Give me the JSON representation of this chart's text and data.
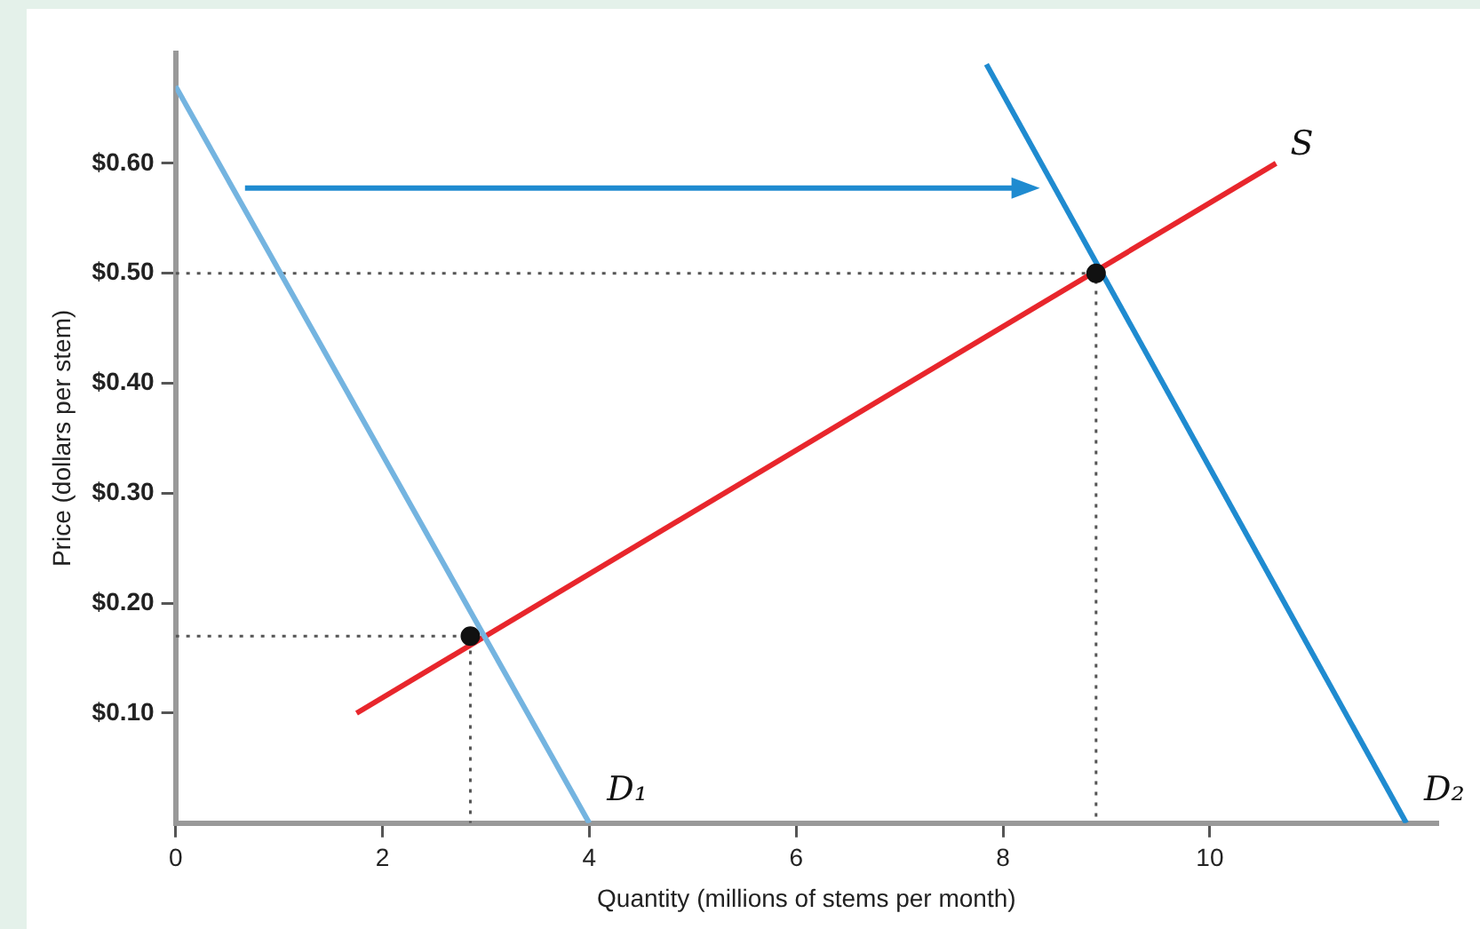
{
  "chart_data": {
    "type": "line",
    "xlabel": "Quantity (millions of stems per month)",
    "ylabel": "Price (dollars per stem)",
    "xlim": [
      0,
      12.2
    ],
    "ylim": [
      0,
      0.7
    ],
    "xticks": [
      0,
      2,
      4,
      6,
      8,
      10
    ],
    "yticks": [
      {
        "value": 0.1,
        "label": "$0.10"
      },
      {
        "value": 0.2,
        "label": "$0.20"
      },
      {
        "value": 0.3,
        "label": "$0.30"
      },
      {
        "value": 0.4,
        "label": "$0.40"
      },
      {
        "value": 0.5,
        "label": "$0.50"
      },
      {
        "value": 0.6,
        "label": "$0.60"
      }
    ],
    "grid": false,
    "legend": false,
    "marker": "none",
    "line_style": "solid",
    "series": [
      {
        "name": "D₁",
        "color": "#74b4e0",
        "x": [
          0,
          4
        ],
        "values": [
          0.67,
          0
        ]
      },
      {
        "name": "D₂",
        "color": "#1f8bd0",
        "x": [
          7.84,
          11.9
        ],
        "values": [
          0.69,
          0
        ]
      },
      {
        "name": "S",
        "color": "#e8262c",
        "x": [
          1.75,
          10.64
        ],
        "values": [
          0.1,
          0.6
        ]
      },
      {
        "color": "#555555",
        "line_style": "dotted",
        "x": [
          0,
          2.85,
          2.85
        ],
        "values": [
          0.17,
          0.17,
          0
        ]
      },
      {
        "color": "#555555",
        "line_style": "dotted",
        "x": [
          0,
          8.9,
          8.9
        ],
        "values": [
          0.5,
          0.5,
          0
        ]
      },
      {
        "type": "scatter",
        "color": "#111111",
        "marker": "circle",
        "x": [
          2.85,
          8.9
        ],
        "values": [
          0.17,
          0.5
        ]
      }
    ]
  }
}
